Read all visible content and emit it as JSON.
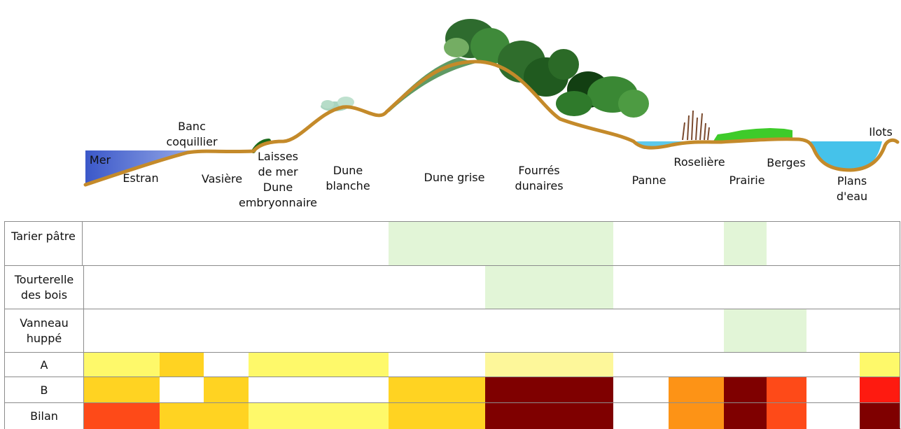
{
  "profile": {
    "labels": [
      {
        "id": "mer",
        "text": "Mer"
      },
      {
        "id": "estran",
        "text": "Estran"
      },
      {
        "id": "banc",
        "text": "Banc\ncoquillier"
      },
      {
        "id": "vasiere",
        "text": "Vasière"
      },
      {
        "id": "laisses",
        "text": "Laisses\nde mer\nDune\nembryonnaire"
      },
      {
        "id": "dune-blanche",
        "text": "Dune\nblanche"
      },
      {
        "id": "dune-grise",
        "text": "Dune grise"
      },
      {
        "id": "fourres",
        "text": "Fourrés\ndunaires"
      },
      {
        "id": "panne",
        "text": "Panne"
      },
      {
        "id": "roseliere",
        "text": "Roselière"
      },
      {
        "id": "prairie",
        "text": "Prairie"
      },
      {
        "id": "berges",
        "text": "Berges"
      },
      {
        "id": "plans-eau",
        "text": "Plans d'eau"
      },
      {
        "id": "ilots",
        "text": "Ilots"
      }
    ]
  },
  "table": {
    "rows": [
      {
        "label": "Tarier pâtre"
      },
      {
        "label": "Tourterelle\ndes bois"
      },
      {
        "label": "Vanneau\nhuppé"
      },
      {
        "label": "A"
      },
      {
        "label": "B"
      },
      {
        "label": "Bilan"
      }
    ]
  },
  "colors": {
    "presence_green": "#e2f5d7",
    "yellow_light": "#fdf79a",
    "yellow": "#fef96a",
    "gold": "#ffd322",
    "orange": "#fd9316",
    "red_orange": "#fe4a18",
    "red": "#fe1a10",
    "dark_red": "#7f0000",
    "sand_line": "#c48a2a",
    "sea_blue": "#3ec0e8"
  }
}
